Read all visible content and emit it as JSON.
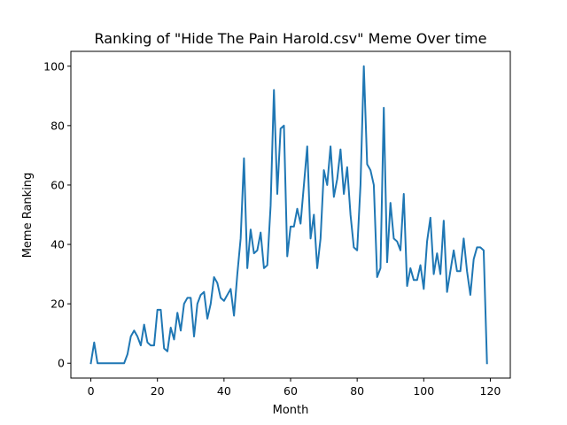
{
  "chart_data": {
    "type": "line",
    "title": "Ranking of \"Hide The Pain Harold.csv\" Meme Over time",
    "xlabel": "Month",
    "ylabel": "Meme Ranking",
    "xlim": [
      -6,
      126
    ],
    "ylim": [
      -5,
      105
    ],
    "xticks": [
      0,
      20,
      40,
      60,
      80,
      100,
      120
    ],
    "yticks": [
      0,
      20,
      40,
      60,
      80,
      100
    ],
    "grid": false,
    "line_color": "#1f77b4",
    "series": [
      {
        "x": [
          0,
          1,
          2,
          3,
          4,
          5,
          6,
          7,
          8,
          9,
          10,
          11,
          12,
          13,
          14,
          15,
          16,
          17,
          18,
          19,
          20,
          21,
          22,
          23,
          24,
          25,
          26,
          27,
          28,
          29,
          30,
          31,
          32,
          33,
          34,
          35,
          36,
          37,
          38,
          39,
          40,
          41,
          42,
          43,
          44,
          45,
          46,
          47,
          48,
          49,
          50,
          51,
          52,
          53,
          54,
          55,
          56,
          57,
          58,
          59,
          60,
          61,
          62,
          63,
          64,
          65,
          66,
          67,
          68,
          69,
          70,
          71,
          72,
          73,
          74,
          75,
          76,
          77,
          78,
          79,
          80,
          81,
          82,
          83,
          84,
          85,
          86,
          87,
          88,
          89,
          90,
          91,
          92,
          93,
          94,
          95,
          96,
          97,
          98,
          99,
          100,
          101,
          102,
          103,
          104,
          105,
          106,
          107,
          108,
          109,
          110,
          111,
          112,
          113,
          114,
          115,
          116,
          117,
          118,
          119
        ],
        "y": [
          0,
          7,
          0,
          0,
          0,
          0,
          0,
          0,
          0,
          0,
          0,
          3,
          9,
          11,
          9,
          6,
          13,
          7,
          6,
          6,
          18,
          18,
          5,
          4,
          12,
          8,
          17,
          11,
          20,
          22,
          22,
          9,
          20,
          23,
          24,
          15,
          20,
          29,
          27,
          22,
          21,
          23,
          25,
          16,
          30,
          42,
          69,
          32,
          45,
          37,
          38,
          44,
          32,
          33,
          53,
          92,
          57,
          79,
          80,
          36,
          46,
          46,
          52,
          47,
          60,
          73,
          42,
          50,
          32,
          42,
          65,
          60,
          73,
          56,
          62,
          72,
          57,
          66,
          50,
          39,
          38,
          60,
          100,
          67,
          65,
          60,
          29,
          32,
          86,
          34,
          54,
          42,
          41,
          38,
          57,
          26,
          32,
          28,
          28,
          33,
          25,
          41,
          49,
          30,
          37,
          30,
          48,
          24,
          31,
          38,
          31,
          31,
          42,
          31,
          23,
          35,
          39,
          39,
          38,
          0
        ]
      }
    ]
  }
}
